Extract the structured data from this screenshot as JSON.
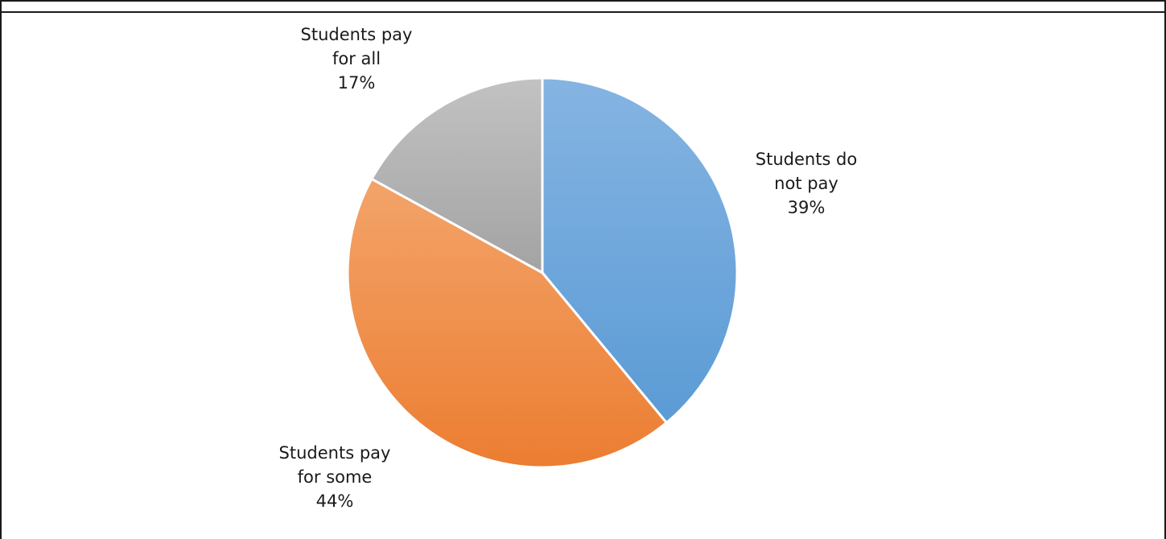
{
  "chart_data": {
    "type": "pie",
    "slices": [
      {
        "label_lines": [
          "Students do",
          "not pay"
        ],
        "pct_label": "39%",
        "value": 39,
        "color_top": "#85b4e2",
        "color_bottom": "#5b9bd5"
      },
      {
        "label_lines": [
          "Students pay",
          "for some"
        ],
        "pct_label": "44%",
        "value": 44,
        "color_top": "#f3a46a",
        "color_bottom": "#ec7d31"
      },
      {
        "label_lines": [
          "Students pay",
          "for all"
        ],
        "pct_label": "17%",
        "value": 17,
        "color_top": "#c2c2c2",
        "color_bottom": "#a3a3a3"
      }
    ],
    "start_angle_deg": 0,
    "direction": "clockwise"
  }
}
